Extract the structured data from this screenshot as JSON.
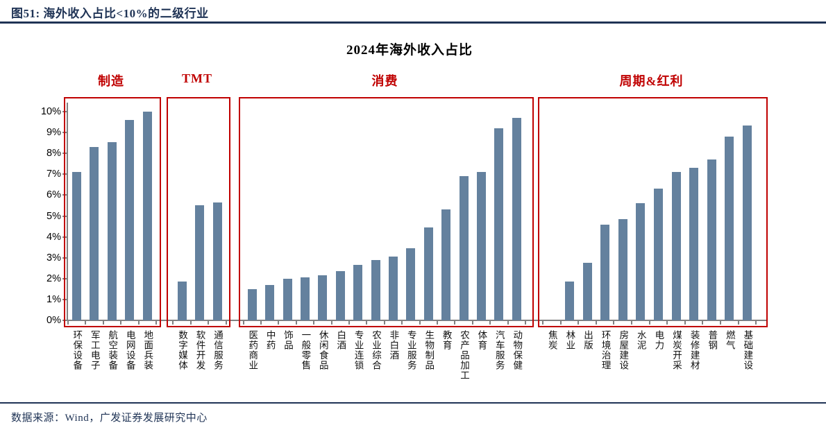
{
  "figure": {
    "title": "图51:  海外收入占比<10%的二级行业"
  },
  "footer": {
    "source": "数据来源：Wind，广发证券发展研究中心"
  },
  "colors": {
    "bar": "#64819E",
    "group_box": "#C00000",
    "group_label": "#C00000",
    "navy": "#1F3355",
    "axis_gray": "#808080"
  },
  "chart_data": {
    "type": "bar",
    "title": "2024年海外收入占比",
    "xlabel": "",
    "ylabel": "",
    "ylim": [
      0,
      10
    ],
    "y_tick_labels": [
      "0%",
      "1%",
      "2%",
      "3%",
      "4%",
      "5%",
      "6%",
      "7%",
      "8%",
      "9%",
      "10%"
    ],
    "grid": false,
    "legend": null,
    "unit": "percent",
    "groups": [
      {
        "label": "制造",
        "categories": [
          "环保设备",
          "军工电子",
          "航空装备",
          "电网设备",
          "地面兵装"
        ],
        "values": [
          7.1,
          8.3,
          8.55,
          9.6,
          10.0
        ]
      },
      {
        "label": "TMT",
        "categories": [
          "数字媒体",
          "软件开发",
          "通信服务"
        ],
        "values": [
          1.85,
          5.5,
          5.65
        ]
      },
      {
        "label": "消费",
        "categories": [
          "医药商业",
          "中药",
          "饰品",
          "一般零售",
          "休闲食品",
          "白酒",
          "专业连锁",
          "农业综合",
          "非白酒",
          "专业服务",
          "生物制品",
          "教育",
          "农产品加工",
          "体育",
          "汽车服务",
          "动物保健"
        ],
        "values": [
          1.5,
          1.7,
          2.0,
          2.05,
          2.15,
          2.35,
          2.65,
          2.9,
          3.05,
          3.45,
          4.45,
          5.3,
          6.9,
          7.1,
          9.2,
          9.7
        ]
      },
      {
        "label": "周期&红利",
        "categories": [
          "焦炭",
          "林业",
          "出版",
          "环境治理",
          "房屋建设",
          "水泥",
          "电力",
          "煤炭开采",
          "装修建材",
          "普钢",
          "燃气",
          "基础建设"
        ],
        "values": [
          0,
          1.85,
          2.75,
          4.6,
          4.85,
          5.6,
          6.3,
          7.1,
          7.3,
          7.7,
          8.8,
          9.35
        ]
      }
    ]
  }
}
